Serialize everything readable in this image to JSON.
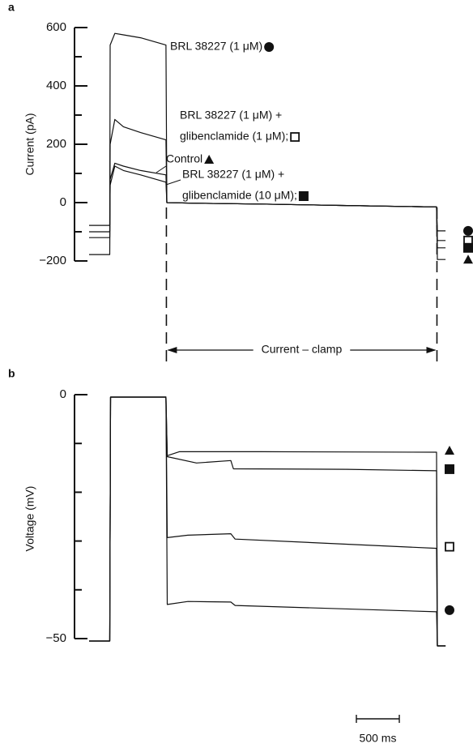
{
  "chart_data": [
    {
      "type": "line",
      "panel_label": "a",
      "y_label": "Current (pA)",
      "ylim": [
        -200,
        600
      ],
      "yticks": [
        {
          "value": -200,
          "label": "−200"
        },
        0,
        200,
        400,
        600
      ],
      "minor_yticks": [
        -100,
        100,
        300,
        500
      ],
      "xlim": [
        0,
        4300
      ],
      "x": [
        0,
        240,
        245,
        300,
        400,
        600,
        895,
        905,
        1200,
        2000,
        3000,
        4045,
        4055,
        4150
      ],
      "series": [
        {
          "label_lines": [
            "BRL 38227 (1 μM)"
          ],
          "marker": "circle",
          "color": "#111111",
          "values": [
            -78,
            -78,
            540,
            580,
            575,
            565,
            540,
            0,
            -2,
            -5,
            -10,
            -15,
            -97,
            -97
          ]
        },
        {
          "label_lines": [
            "BRL 38227 (1 μM) +",
            "glibenclamide (1 μM);"
          ],
          "marker": "open-square",
          "color": "#111111",
          "values": [
            -100,
            -100,
            200,
            285,
            260,
            240,
            215,
            0,
            -2,
            -5,
            -10,
            -15,
            -130,
            -130
          ]
        },
        {
          "label_lines": [
            "Control"
          ],
          "marker": "triangle",
          "color": "#111111",
          "values": [
            -178,
            -178,
            80,
            135,
            125,
            110,
            95,
            0,
            -2,
            -5,
            -10,
            -15,
            -195,
            -195
          ]
        },
        {
          "label_lines": [
            "BRL 38227 (1 μM) +",
            "glibenclamide (10 μM);"
          ],
          "marker": "filled-square",
          "color": "#111111",
          "values": [
            -120,
            -120,
            60,
            125,
            110,
            95,
            70,
            0,
            -2,
            -5,
            -10,
            -15,
            -155,
            -155
          ]
        }
      ],
      "clamp_annotation": {
        "text": "Current – clamp",
        "x": [
          900,
          4050
        ]
      }
    },
    {
      "type": "line",
      "panel_label": "b",
      "y_label": "Voltage (mV)",
      "ylim": [
        -50,
        0
      ],
      "yticks": [
        {
          "value": -50,
          "label": "−50"
        },
        0
      ],
      "minor_yticks": [
        -40,
        -30,
        -20,
        -10
      ],
      "xlim": [
        0,
        4300
      ],
      "series": [
        {
          "marker": "triangle",
          "color": "#111111",
          "x": [
            0,
            240,
            250,
            895,
            910,
            1050,
            2000,
            4045,
            4055,
            4150
          ],
          "values": [
            -50.5,
            -50.5,
            -0.5,
            -0.5,
            -12.5,
            -11.7,
            -11.7,
            -11.8,
            -51.5,
            -51.5
          ]
        },
        {
          "marker": "filled-square",
          "color": "#111111",
          "x": [
            0,
            240,
            250,
            895,
            910,
            1250,
            1650,
            1680,
            3000,
            4045,
            4055,
            4150
          ],
          "values": [
            -50.5,
            -50.5,
            -0.5,
            -0.5,
            -12.7,
            -14,
            -13.5,
            -15.2,
            -15.3,
            -15.6,
            -51.5,
            -51.5
          ]
        },
        {
          "marker": "open-square",
          "color": "#111111",
          "x": [
            0,
            240,
            250,
            895,
            910,
            1150,
            1650,
            1700,
            4045,
            4055,
            4150
          ],
          "values": [
            -50.5,
            -50.5,
            -0.5,
            -0.5,
            -29.3,
            -28.8,
            -28.5,
            -29.6,
            -31.5,
            -51.5,
            -51.5
          ]
        },
        {
          "marker": "circle",
          "color": "#111111",
          "x": [
            0,
            240,
            250,
            895,
            910,
            1150,
            1650,
            1700,
            4045,
            4055,
            4150
          ],
          "values": [
            -50.5,
            -50.5,
            -0.5,
            -0.5,
            -43,
            -42.4,
            -42.5,
            -43.2,
            -44.5,
            -51.5,
            -51.5
          ]
        }
      ],
      "scale_bar": {
        "value": 500,
        "label": "500 ms"
      }
    }
  ]
}
